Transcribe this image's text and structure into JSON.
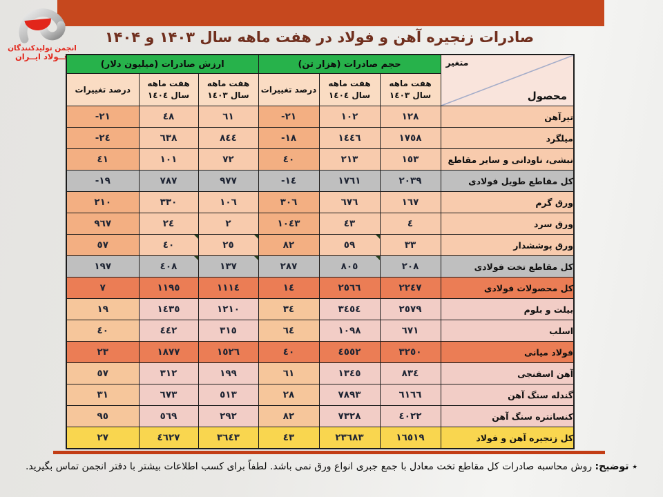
{
  "title": "صادرات زنجیره آهن و فولاد در هفت ماهه سال ۱۴۰۳ و ۱۴۰۴",
  "logo": {
    "line1": "انجمن تولیدکنندگان",
    "line2": "فــولاد ایــران"
  },
  "table": {
    "corner": {
      "top": "متغیر",
      "bottom": "محصول"
    },
    "groups": {
      "volume": "حجم صادرات (هزار تن)",
      "value": "ارزش صادرات (میلیون دلار)"
    },
    "subheaders": {
      "pct": "درصد تغییرات",
      "period_line": "هفت ماهه",
      "y1403": "سال ١٤٠٣",
      "y1404": "سال ١٤٠٤"
    },
    "rows": [
      {
        "product": "تیرآهن",
        "vol_1403": "١٢٨",
        "vol_1404": "١٠٢",
        "vol_pct": "-٢١",
        "val_1403": "٦١",
        "val_1404": "٤٨",
        "val_pct": "-٢١",
        "theme": "peach",
        "markers": []
      },
      {
        "product": "میلگرد",
        "vol_1403": "١٧٥٨",
        "vol_1404": "١٤٤٦",
        "vol_pct": "-١٨",
        "val_1403": "٨٤٤",
        "val_1404": "٦٣٨",
        "val_pct": "-٢٤",
        "theme": "peach",
        "markers": []
      },
      {
        "product": "نبشی، ناودانی و سایر مقاطع",
        "vol_1403": "١٥٣",
        "vol_1404": "٢١٣",
        "vol_pct": "٤٠",
        "val_1403": "٧٢",
        "val_1404": "١٠١",
        "val_pct": "٤١",
        "theme": "peach",
        "markers": []
      },
      {
        "product": "کل مقاطع طویل فولادی",
        "vol_1403": "٢٠٣٩",
        "vol_1404": "١٧٦١",
        "vol_pct": "-١٤",
        "val_1403": "٩٧٧",
        "val_1404": "٧٨٧",
        "val_pct": "-١٩",
        "theme": "gray",
        "markers": []
      },
      {
        "product": "ورق گرم",
        "vol_1403": "١٦٧",
        "vol_1404": "٦٧٦",
        "vol_pct": "٣٠٦",
        "val_1403": "١٠٦",
        "val_1404": "٣٣٠",
        "val_pct": "٢١٠",
        "theme": "peach",
        "markers": []
      },
      {
        "product": "ورق سرد",
        "vol_1403": "٤",
        "vol_1404": "٤٣",
        "vol_pct": "١٠٤٣",
        "val_1403": "٢",
        "val_1404": "٢٤",
        "val_pct": "٩٦٧",
        "theme": "peach",
        "markers": []
      },
      {
        "product": "ورق پوششدار",
        "vol_1403": "٣٣",
        "vol_1404": "٥٩",
        "vol_pct": "٨٢",
        "val_1403": "٢٥",
        "val_1404": "٤٠",
        "val_pct": "٥٧",
        "theme": "peach",
        "markers": [
          "vol_1404",
          "val_1403",
          "val_1404"
        ]
      },
      {
        "product": "کل مقاطع تخت فولادی",
        "vol_1403": "٢٠٨",
        "vol_1404": "٨٠٥",
        "vol_pct": "٢٨٧",
        "val_1403": "١٣٧",
        "val_1404": "٤٠٨",
        "val_pct": "١٩٧",
        "theme": "gray",
        "markers": [
          "vol_1404",
          "val_1403",
          "val_1404"
        ]
      },
      {
        "product": "کل محصولات فولادی",
        "vol_1403": "٢٢٤٧",
        "vol_1404": "٢٥٦٦",
        "vol_pct": "١٤",
        "val_1403": "١١١٤",
        "val_1404": "١١٩٥",
        "val_pct": "٧",
        "theme": "orange",
        "markers": []
      },
      {
        "product": "بیلت و بلوم",
        "vol_1403": "٢٥٧٩",
        "vol_1404": "٣٤٥٤",
        "vol_pct": "٣٤",
        "val_1403": "١٢١٠",
        "val_1404": "١٤٣٥",
        "val_pct": "١٩",
        "theme": "pink",
        "markers": []
      },
      {
        "product": "اسلب",
        "vol_1403": "٦٧١",
        "vol_1404": "١٠٩٨",
        "vol_pct": "٦٤",
        "val_1403": "٣١٥",
        "val_1404": "٤٤٢",
        "val_pct": "٤٠",
        "theme": "pink",
        "markers": []
      },
      {
        "product": "فولاد میانی",
        "vol_1403": "٣٢٥٠",
        "vol_1404": "٤٥٥٢",
        "vol_pct": "٤٠",
        "val_1403": "١٥٢٦",
        "val_1404": "١٨٧٧",
        "val_pct": "٢٣",
        "theme": "orange",
        "markers": []
      },
      {
        "product": "آهن اسفنجی",
        "vol_1403": "٨٣٤",
        "vol_1404": "١٣٤٥",
        "vol_pct": "٦١",
        "val_1403": "١٩٩",
        "val_1404": "٣١٢",
        "val_pct": "٥٧",
        "theme": "pink",
        "markers": []
      },
      {
        "product": "گندله سنگ آهن",
        "vol_1403": "٦١٦٦",
        "vol_1404": "٧٨٩٣",
        "vol_pct": "٢٨",
        "val_1403": "٥١٣",
        "val_1404": "٦٧٣",
        "val_pct": "٣١",
        "theme": "pink",
        "markers": []
      },
      {
        "product": "کنسانتره سنگ آهن",
        "vol_1403": "٤٠٢٢",
        "vol_1404": "٧٣٢٨",
        "vol_pct": "٨٢",
        "val_1403": "٢٩٢",
        "val_1404": "٥٦٩",
        "val_pct": "٩٥",
        "theme": "pink",
        "markers": []
      },
      {
        "product": "کل زنجیره آهن و فولاد",
        "vol_1403": "١٦٥١٩",
        "vol_1404": "٢٣٦٨٣",
        "vol_pct": "٤٣",
        "val_1403": "٣٦٤٣",
        "val_1404": "٤٦٢٧",
        "val_pct": "٢٧",
        "theme": "yellow",
        "markers": []
      }
    ]
  },
  "footnote": {
    "label": "٭ توضیح:",
    "text": "روش محاسبه صادرات کل مقاطع تخت معادل با جمع جبری انواع ورق نمی باشد. لطفاً برای کسب اطلاعات بیشتر با دفتر انجمن تماس بگیرید."
  },
  "colors": {
    "banner": "#C6481E",
    "header_green": "#27B24B",
    "row_peach": "#F8CBAD",
    "row_peach_pct": "#F3AF82",
    "row_pink": "#F2CDC6",
    "row_pink_pct": "#F6C69B",
    "row_gray": "#BFBFBF",
    "row_orange": "#EB7D55",
    "row_yellow": "#F9D64F"
  }
}
